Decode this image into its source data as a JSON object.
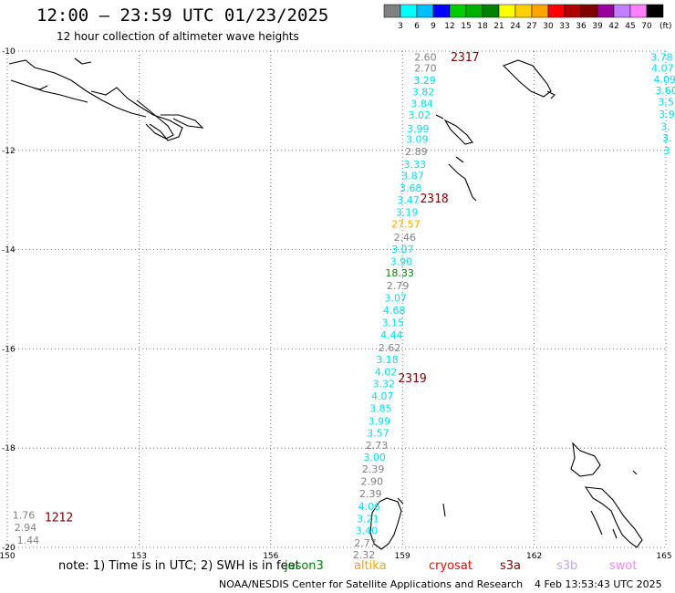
{
  "header": {
    "title": "12:00 — 23:59 UTC 01/23/2025",
    "subtitle": "12 hour collection of altimeter wave heights"
  },
  "colorbar": {
    "colors": [
      "#808080",
      "#00ffff",
      "#00bfff",
      "#0000ff",
      "#00cd00",
      "#00b000",
      "#008000",
      "#ffff00",
      "#ffd000",
      "#ffa500",
      "#ff0000",
      "#b00000",
      "#800000",
      "#990099",
      "#c080ff",
      "#ff80ff",
      "#000000"
    ],
    "labels": [
      "3",
      "6",
      "9",
      "12",
      "15",
      "18",
      "21",
      "24",
      "27",
      "30",
      "33",
      "36",
      "39",
      "42",
      "45",
      "70"
    ],
    "unit": "(ft)"
  },
  "map": {
    "lat_range": [
      -20,
      -10
    ],
    "lon_range": [
      150,
      165
    ],
    "lat_ticks": [
      "-10",
      "-12",
      "-14",
      "-16",
      "-18",
      "-20"
    ],
    "lon_ticks": [
      "150",
      "153",
      "156",
      "159",
      "162",
      "165"
    ]
  },
  "track_labels": [
    {
      "text": "2317",
      "lat": -10.13,
      "lon": 160.1
    },
    {
      "text": "2318",
      "lat": -12.98,
      "lon": 159.4
    },
    {
      "text": "2319",
      "lat": -16.6,
      "lon": 158.9
    },
    {
      "text": "1212",
      "lat": -19.4,
      "lon": 150.85
    }
  ],
  "wave_heights": [
    {
      "v": "2.60",
      "lat": -10.12,
      "lon": 159.27,
      "c": "#808080"
    },
    {
      "v": "2.70",
      "lat": -10.34,
      "lon": 159.27,
      "c": "#808080"
    },
    {
      "v": "3.29",
      "lat": -10.59,
      "lon": 159.25,
      "c": "#00e0f0"
    },
    {
      "v": "3.82",
      "lat": -10.82,
      "lon": 159.22,
      "c": "#00e0f0"
    },
    {
      "v": "3.84",
      "lat": -11.06,
      "lon": 159.19,
      "c": "#00e0f0"
    },
    {
      "v": "3.02",
      "lat": -11.29,
      "lon": 159.13,
      "c": "#00e0f0"
    },
    {
      "v": "3.99",
      "lat": -11.56,
      "lon": 159.1,
      "c": "#00e0f0"
    },
    {
      "v": "3.09",
      "lat": -11.77,
      "lon": 159.08,
      "c": "#00e0f0"
    },
    {
      "v": "2.89",
      "lat": -12.02,
      "lon": 159.06,
      "c": "#808080"
    },
    {
      "v": "3.33",
      "lat": -12.28,
      "lon": 159.03,
      "c": "#00e0f0"
    },
    {
      "v": "3.87",
      "lat": -12.51,
      "lon": 158.98,
      "c": "#00e0f0"
    },
    {
      "v": "3.68",
      "lat": -12.76,
      "lon": 158.93,
      "c": "#00e0f0"
    },
    {
      "v": "3.47",
      "lat": -13.0,
      "lon": 158.88,
      "c": "#00e0f0"
    },
    {
      "v": "3.19",
      "lat": -13.24,
      "lon": 158.85,
      "c": "#00e0f0"
    },
    {
      "v": "27.57",
      "lat": -13.48,
      "lon": 158.75,
      "c": "#ffa500"
    },
    {
      "v": "2.46",
      "lat": -13.75,
      "lon": 158.8,
      "c": "#808080"
    },
    {
      "v": "3.07",
      "lat": -13.99,
      "lon": 158.75,
      "c": "#00e0f0"
    },
    {
      "v": "3.90",
      "lat": -14.24,
      "lon": 158.72,
      "c": "#00e0f0"
    },
    {
      "v": "18.33",
      "lat": -14.47,
      "lon": 158.61,
      "c": "#008000"
    },
    {
      "v": "2.79",
      "lat": -14.72,
      "lon": 158.64,
      "c": "#808080"
    },
    {
      "v": "3.07",
      "lat": -14.97,
      "lon": 158.59,
      "c": "#00e0f0"
    },
    {
      "v": "4.68",
      "lat": -15.22,
      "lon": 158.56,
      "c": "#00e0f0"
    },
    {
      "v": "3.15",
      "lat": -15.47,
      "lon": 158.53,
      "c": "#00e0f0"
    },
    {
      "v": "4.44",
      "lat": -15.72,
      "lon": 158.5,
      "c": "#00e0f0"
    },
    {
      "v": "2.62",
      "lat": -15.97,
      "lon": 158.45,
      "c": "#808080"
    },
    {
      "v": "3.18",
      "lat": -16.21,
      "lon": 158.4,
      "c": "#00e0f0"
    },
    {
      "v": "4.02",
      "lat": -16.46,
      "lon": 158.37,
      "c": "#00e0f0"
    },
    {
      "v": "3.32",
      "lat": -16.7,
      "lon": 158.32,
      "c": "#00e0f0"
    },
    {
      "v": "4.07",
      "lat": -16.95,
      "lon": 158.29,
      "c": "#00e0f0"
    },
    {
      "v": "3.85",
      "lat": -17.2,
      "lon": 158.25,
      "c": "#00e0f0"
    },
    {
      "v": "3.99",
      "lat": -17.45,
      "lon": 158.22,
      "c": "#00e0f0"
    },
    {
      "v": "3.57",
      "lat": -17.69,
      "lon": 158.19,
      "c": "#00e0f0"
    },
    {
      "v": "2.73",
      "lat": -17.94,
      "lon": 158.16,
      "c": "#808080"
    },
    {
      "v": "3.00",
      "lat": -18.18,
      "lon": 158.11,
      "c": "#00e0f0"
    },
    {
      "v": "2.39",
      "lat": -18.42,
      "lon": 158.08,
      "c": "#808080"
    },
    {
      "v": "2.90",
      "lat": -18.67,
      "lon": 158.05,
      "c": "#808080"
    },
    {
      "v": "2.39",
      "lat": -18.92,
      "lon": 158.02,
      "c": "#808080"
    },
    {
      "v": "4.06",
      "lat": -19.17,
      "lon": 157.99,
      "c": "#00e0f0"
    },
    {
      "v": "3.21",
      "lat": -19.42,
      "lon": 157.96,
      "c": "#00e0f0"
    },
    {
      "v": "3.40",
      "lat": -19.66,
      "lon": 157.93,
      "c": "#00e0f0"
    },
    {
      "v": "2.77",
      "lat": -19.91,
      "lon": 157.9,
      "c": "#808080"
    },
    {
      "v": "2.32",
      "lat": -20.15,
      "lon": 157.87,
      "c": "#808080"
    },
    {
      "v": "3.78",
      "lat": -10.12,
      "lon": 164.65,
      "c": "#00e0f0"
    },
    {
      "v": "4.07",
      "lat": -10.34,
      "lon": 164.67,
      "c": "#00e0f0"
    },
    {
      "v": "4.09",
      "lat": -10.57,
      "lon": 164.72,
      "c": "#00e0f0"
    },
    {
      "v": "3.60",
      "lat": -10.79,
      "lon": 164.76,
      "c": "#00e0f0"
    },
    {
      "v": "3.5",
      "lat": -11.02,
      "lon": 164.82,
      "c": "#00e0f0"
    },
    {
      "v": "3.9",
      "lat": -11.27,
      "lon": 164.84,
      "c": "#00e0f0"
    },
    {
      "v": "3.",
      "lat": -11.52,
      "lon": 164.88,
      "c": "#00e0f0"
    },
    {
      "v": "3.",
      "lat": -11.75,
      "lon": 164.92,
      "c": "#00e0f0"
    },
    {
      "v": "3",
      "lat": -12.0,
      "lon": 164.95,
      "c": "#00e0f0"
    },
    {
      "v": "1.76",
      "lat": -19.35,
      "lon": 150.12,
      "c": "#808080"
    },
    {
      "v": "2.94",
      "lat": -19.6,
      "lon": 150.16,
      "c": "#808080"
    },
    {
      "v": "1.44",
      "lat": -19.85,
      "lon": 150.22,
      "c": "#808080"
    }
  ],
  "footer": {
    "note": "note: 1) Time is in UTC; 2) SWH is in feet",
    "satellites": [
      {
        "name": "jason3",
        "color": "#008000"
      },
      {
        "name": "altika",
        "color": "#ffa500"
      },
      {
        "name": "cryosat",
        "color": "#ff0000"
      },
      {
        "name": "s3a",
        "color": "#800000"
      },
      {
        "name": "s3b",
        "color": "#c0a8ff"
      },
      {
        "name": "swot",
        "color": "#ff80ff"
      }
    ],
    "credit": "NOAA/NESDIS Center for Satellite Applications and Research",
    "timestamp": "4 Feb 13:53:43 UTC 2025"
  }
}
